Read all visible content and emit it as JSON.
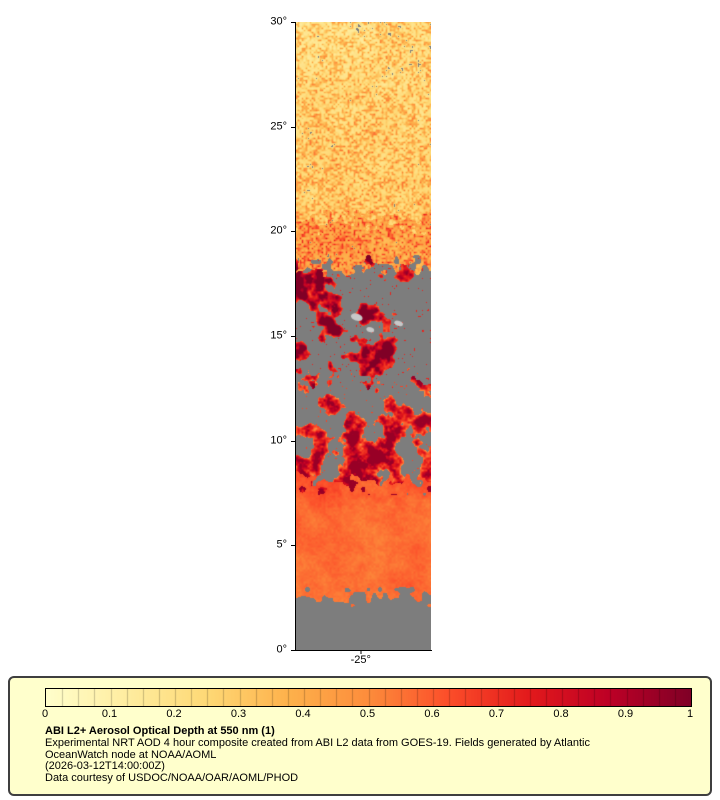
{
  "page": {
    "background": "#ffffff"
  },
  "legend": {
    "background_color": "#ffffcc",
    "border_color": "#3f3f3f",
    "title": "ABI L2+ Aerosol Optical Depth at 550 nm (1)",
    "lines": [
      "Experimental NRT AOD 4 hour composite created from ABI L2 data from GOES-19. Fields generated by Atlantic",
      "OceanWatch node at NOAA/AOML",
      "(2026-03-12T14:00:00Z)",
      "Data courtesy of USDOC/NOAA/OAR/AOML/PHOD"
    ]
  },
  "chart_data": {
    "type": "heatmap",
    "title": "ABI L2+ Aerosol Optical Depth at 550 nm (1)",
    "variable": "Aerosol Optical Depth at 550 nm",
    "colorbar": {
      "min": 0,
      "max": 1,
      "tick_labels": [
        "0",
        "0.1",
        "0.2",
        "0.3",
        "0.4",
        "0.5",
        "0.6",
        "0.7",
        "0.8",
        "0.9",
        "1"
      ],
      "segments": 40,
      "colormap_stops": [
        {
          "pos": 0.0,
          "color": "#ffffcc"
        },
        {
          "pos": 0.125,
          "color": "#ffeda0"
        },
        {
          "pos": 0.25,
          "color": "#fed976"
        },
        {
          "pos": 0.375,
          "color": "#feb24c"
        },
        {
          "pos": 0.5,
          "color": "#fd8d3c"
        },
        {
          "pos": 0.625,
          "color": "#fc4e2a"
        },
        {
          "pos": 0.75,
          "color": "#e31a1c"
        },
        {
          "pos": 0.875,
          "color": "#bd0026"
        },
        {
          "pos": 1.0,
          "color": "#800026"
        }
      ]
    },
    "map": {
      "lat_range": [
        0,
        30
      ],
      "lat_ticks": [
        "30°",
        "25°",
        "20°",
        "15°",
        "10°",
        "5°",
        "0°"
      ],
      "lon_tick": "-25°",
      "lon_tick_xf": 0.48,
      "nodata_color": "#7d7d7d",
      "cloud_color": "#c8c8c8",
      "clouds": [
        {
          "xf": 0.45,
          "lat": 15.9,
          "rx": 6,
          "ry": 3.5
        },
        {
          "xf": 0.55,
          "lat": 15.3,
          "rx": 4,
          "ry": 2.5
        },
        {
          "xf": 0.76,
          "lat": 15.6,
          "rx": 4.5,
          "ry": 2.5
        }
      ],
      "regions": [
        {
          "name": "saharan-dust-north",
          "lat_min": 20.5,
          "lat_max": 30.01,
          "texture": "speckle",
          "coverage": 0.9,
          "aod_min": 0.08,
          "aod_max": 0.55
        },
        {
          "name": "transition-band",
          "lat_min": 18.3,
          "lat_max": 20.5,
          "texture": "speckle",
          "coverage": 0.92,
          "aod_min": 0.3,
          "aod_max": 0.8
        },
        {
          "name": "patchy-plume",
          "lat_min": 13.0,
          "lat_max": 18.3,
          "texture": "blobs",
          "coverage": 0.38,
          "aod_min": 0.45,
          "aod_max": 1.0
        },
        {
          "name": "diagonal-streaks",
          "lat_min": 8.0,
          "lat_max": 13.0,
          "texture": "diag",
          "coverage": 0.55,
          "aod_min": 0.4,
          "aod_max": 0.95
        },
        {
          "name": "main-plume",
          "lat_min": 2.6,
          "lat_max": 8.0,
          "texture": "smooth",
          "coverage": 0.86,
          "aod_min": 0.42,
          "aod_max": 0.68
        },
        {
          "name": "clear-south",
          "lat_min": 0.0,
          "lat_max": 2.6,
          "texture": "none",
          "coverage": 0.0,
          "aod_min": 0.0,
          "aod_max": 0.0
        }
      ]
    }
  }
}
